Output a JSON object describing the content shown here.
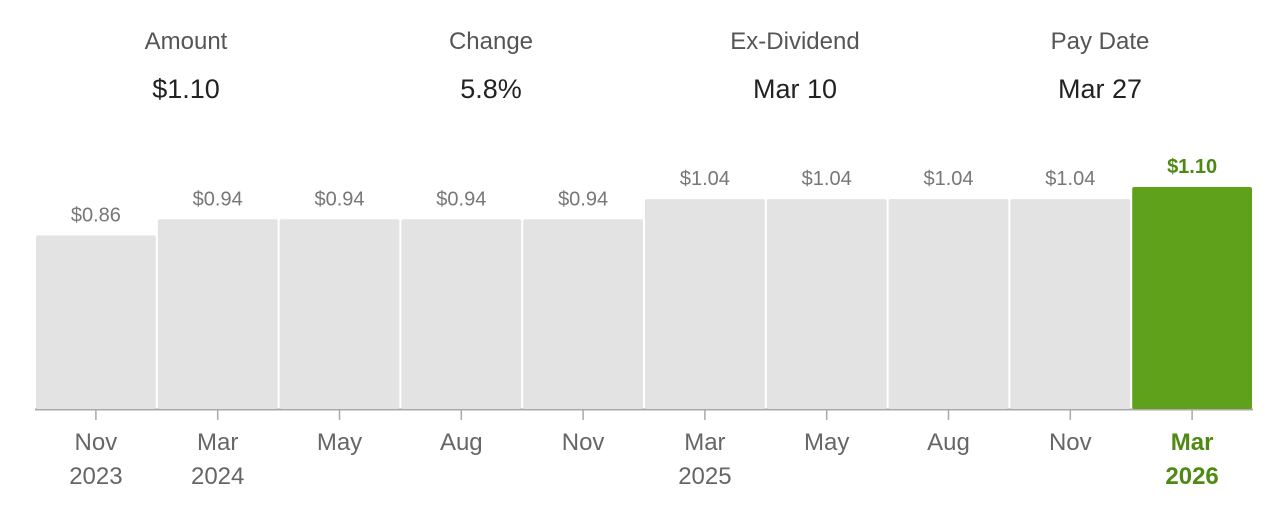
{
  "header": {
    "stats": [
      {
        "label": "Amount",
        "value": "$1.10"
      },
      {
        "label": "Change",
        "value": "5.8%"
      },
      {
        "label": "Ex-Dividend",
        "value": "Mar 10"
      },
      {
        "label": "Pay Date",
        "value": "Mar 27"
      }
    ]
  },
  "chart_data": {
    "type": "bar",
    "categories": [
      "Nov 2023",
      "Mar 2024",
      "May",
      "Aug",
      "Nov",
      "Mar 2025",
      "May",
      "Aug",
      "Nov",
      "Mar 2026"
    ],
    "values": [
      0.86,
      0.94,
      0.94,
      0.94,
      0.94,
      1.04,
      1.04,
      1.04,
      1.04,
      1.1
    ],
    "value_labels": [
      "$0.86",
      "$0.94",
      "$0.94",
      "$0.94",
      "$0.94",
      "$1.04",
      "$1.04",
      "$1.04",
      "$1.04",
      "$1.10"
    ],
    "colors": [
      "#e3e3e3",
      "#e3e3e3",
      "#e3e3e3",
      "#e3e3e3",
      "#e3e3e3",
      "#e3e3e3",
      "#e3e3e3",
      "#e3e3e3",
      "#e3e3e3",
      "#5fa11a"
    ]
  }
}
